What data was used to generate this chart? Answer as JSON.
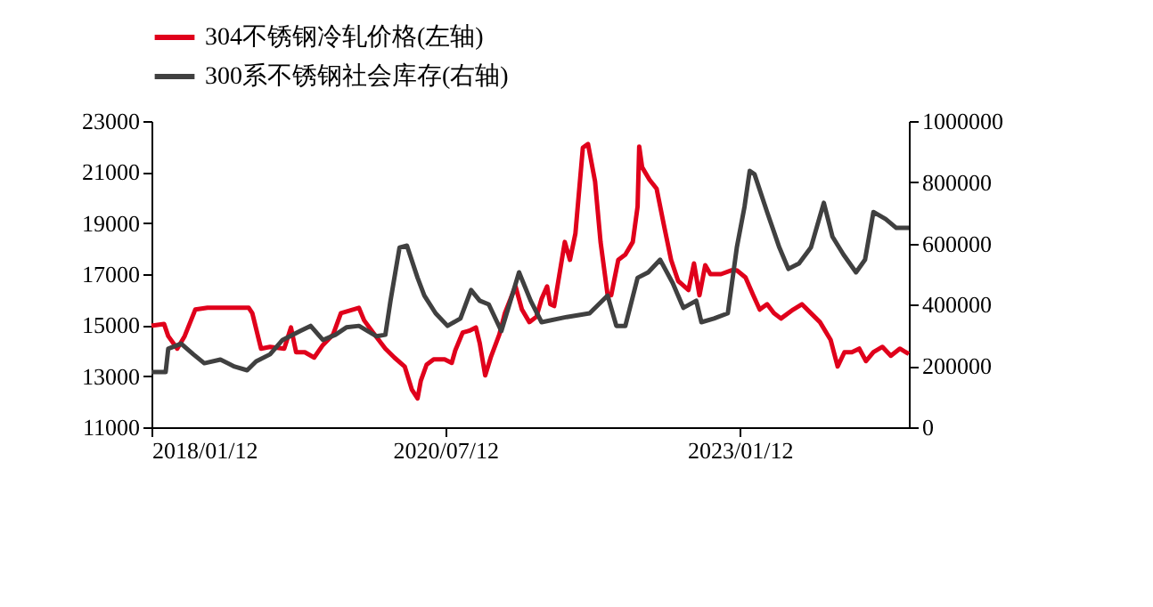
{
  "chart_data": {
    "type": "line",
    "xlim": [
      "2018-01-12",
      "2024-06-20"
    ],
    "xticks": [
      {
        "value": "2018-01-12",
        "label": "2018/01/12"
      },
      {
        "value": "2020-07-12",
        "label": "2020/07/12"
      },
      {
        "value": "2023-01-12",
        "label": "2023/01/12"
      }
    ],
    "ylim": [
      11000,
      23000
    ],
    "yticks": [
      11000,
      13000,
      15000,
      17000,
      19000,
      21000,
      23000
    ],
    "y2lim": [
      0,
      1000000
    ],
    "y2ticks": [
      0,
      200000,
      400000,
      600000,
      800000,
      1000000
    ],
    "legend": "top",
    "grid": false,
    "line_style": "solid",
    "marker": "none",
    "series": [
      {
        "name": "304不锈钢冷轧价格(左轴)",
        "color": "#e0001b",
        "axis": "y",
        "x": [
          "2018-01-12",
          "2018-02-20",
          "2018-03-05",
          "2018-04-02",
          "2018-04-25",
          "2018-05-28",
          "2018-07-05",
          "2018-08-30",
          "2018-11-10",
          "2018-11-21",
          "2018-12-18",
          "2019-01-15",
          "2019-02-28",
          "2019-03-21",
          "2019-04-06",
          "2019-05-03",
          "2019-06-01",
          "2019-06-28",
          "2019-07-30",
          "2019-08-23",
          "2019-10-18",
          "2019-11-03",
          "2019-12-01",
          "2020-01-08",
          "2020-02-05",
          "2020-03-08",
          "2020-03-30",
          "2020-04-17",
          "2020-04-27",
          "2020-05-15",
          "2020-06-06",
          "2020-07-10",
          "2020-08-01",
          "2020-08-12",
          "2020-09-04",
          "2020-09-24",
          "2020-10-15",
          "2020-10-27",
          "2020-11-13",
          "2020-11-30",
          "2020-12-27",
          "2021-01-13",
          "2021-02-15",
          "2021-03-07",
          "2021-03-30",
          "2021-04-21",
          "2021-05-07",
          "2021-05-24",
          "2021-06-03",
          "2021-06-15",
          "2021-07-18",
          "2021-08-03",
          "2021-08-20",
          "2021-09-12",
          "2021-09-28",
          "2021-10-20",
          "2021-11-06",
          "2021-11-28",
          "2021-12-09",
          "2021-12-31",
          "2022-01-22",
          "2022-02-14",
          "2022-03-01",
          "2022-03-06",
          "2022-03-15",
          "2022-04-07",
          "2022-04-29",
          "2022-05-21",
          "2022-06-13",
          "2022-07-05",
          "2022-08-06",
          "2022-08-23",
          "2022-09-09",
          "2022-09-27",
          "2022-10-13",
          "2022-11-15",
          "2022-12-18",
          "2023-01-03",
          "2023-01-30",
          "2023-02-23",
          "2023-03-15",
          "2023-04-07",
          "2023-04-28",
          "2023-05-20",
          "2023-06-27",
          "2023-07-24",
          "2023-08-21",
          "2023-09-18",
          "2023-10-21",
          "2023-11-12",
          "2023-12-03",
          "2023-12-26",
          "2024-01-18",
          "2024-02-08",
          "2024-03-02",
          "2024-03-30",
          "2024-04-25",
          "2024-05-23",
          "2024-06-20"
        ],
        "values": [
          14980,
          15050,
          14570,
          14080,
          14570,
          15610,
          15680,
          15680,
          15680,
          15470,
          14080,
          14150,
          14080,
          14910,
          13940,
          13940,
          13730,
          14220,
          14640,
          15470,
          15680,
          15190,
          14710,
          14080,
          13730,
          13380,
          12480,
          12130,
          12820,
          13450,
          13660,
          13660,
          13520,
          14010,
          14710,
          14780,
          14910,
          14290,
          13030,
          13730,
          14640,
          15470,
          16520,
          15610,
          15120,
          15330,
          16030,
          16520,
          15820,
          15750,
          18260,
          17560,
          18600,
          21950,
          22100,
          20630,
          18260,
          16170,
          16170,
          17560,
          17770,
          18260,
          19650,
          22000,
          21190,
          20700,
          20350,
          18960,
          17560,
          16730,
          16380,
          17420,
          16170,
          17350,
          17000,
          17000,
          17150,
          17150,
          16870,
          16170,
          15610,
          15820,
          15470,
          15260,
          15610,
          15820,
          15470,
          15120,
          14430,
          13380,
          13940,
          13940,
          14080,
          13590,
          13940,
          14150,
          13800,
          14080,
          13870
        ]
      },
      {
        "name": "300系不锈钢社会库存(右轴)",
        "color": "#404040",
        "axis": "y2",
        "x": [
          "2018-01-12",
          "2018-02-25",
          "2018-03-05",
          "2018-04-14",
          "2018-05-22",
          "2018-06-25",
          "2018-08-14",
          "2018-09-27",
          "2018-11-05",
          "2018-12-03",
          "2019-01-15",
          "2019-02-23",
          "2019-04-18",
          "2019-05-21",
          "2019-06-28",
          "2019-08-06",
          "2019-09-09",
          "2019-10-18",
          "2019-12-12",
          "2020-01-08",
          "2020-01-24",
          "2020-02-21",
          "2020-03-15",
          "2020-04-17",
          "2020-05-08",
          "2020-06-12",
          "2020-07-19",
          "2020-08-28",
          "2020-09-30",
          "2020-10-27",
          "2020-11-24",
          "2021-01-02",
          "2021-02-26",
          "2021-04-03",
          "2021-05-07",
          "2021-07-24",
          "2021-10-03",
          "2021-11-28",
          "2021-12-25",
          "2022-01-22",
          "2022-03-01",
          "2022-04-03",
          "2022-05-10",
          "2022-06-18",
          "2022-07-21",
          "2022-08-30",
          "2022-09-15",
          "2022-10-24",
          "2022-12-06",
          "2023-01-03",
          "2023-01-27",
          "2023-02-12",
          "2023-02-27",
          "2023-04-07",
          "2023-05-15",
          "2023-06-12",
          "2023-07-15",
          "2023-08-21",
          "2023-09-30",
          "2023-10-27",
          "2023-11-30",
          "2024-01-08",
          "2024-02-05",
          "2024-03-02",
          "2024-04-09",
          "2024-05-12",
          "2024-06-20"
        ],
        "values": [
          180000,
          180000,
          256000,
          273000,
          238000,
          209000,
          221000,
          198000,
          186000,
          215000,
          238000,
          285000,
          314000,
          331000,
          285000,
          302000,
          326000,
          331000,
          297000,
          302000,
          413000,
          587000,
          593000,
          488000,
          430000,
          372000,
          331000,
          355000,
          448000,
          413000,
          401000,
          314000,
          506000,
          413000,
          343000,
          360000,
          372000,
          430000,
          331000,
          331000,
          488000,
          506000,
          547000,
          471000,
          390000,
          413000,
          343000,
          355000,
          372000,
          587000,
          721000,
          837000,
          826000,
          703000,
          587000,
          517000,
          535000,
          587000,
          733000,
          622000,
          564000,
          506000,
          547000,
          703000,
          680000,
          651000,
          651000
        ]
      }
    ]
  }
}
